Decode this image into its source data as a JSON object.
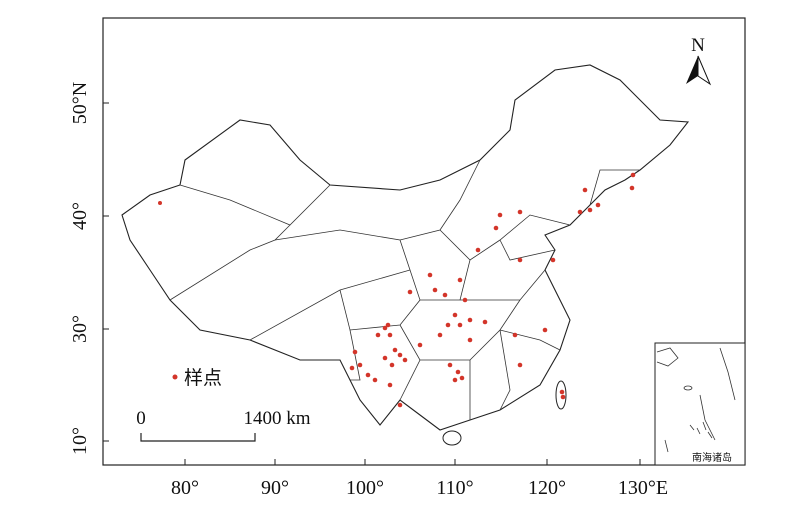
{
  "axes": {
    "y_labels": [
      "50°N",
      "40°",
      "30°",
      "10°"
    ],
    "x_labels": [
      "80°",
      "90°",
      "100°",
      "110°",
      "120°",
      "130°E"
    ]
  },
  "legend": {
    "label": "样点"
  },
  "scale_bar": {
    "start": "0",
    "end": "1400 km"
  },
  "north_arrow": "N",
  "inset": {
    "label": "南海诸岛"
  }
}
